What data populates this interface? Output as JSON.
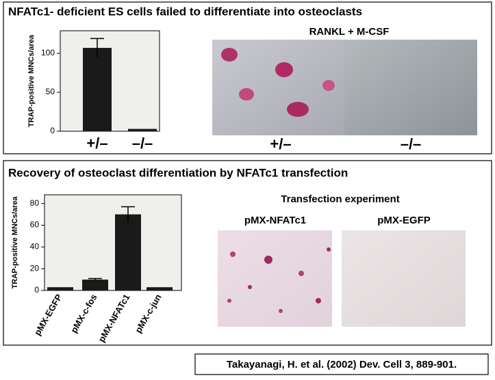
{
  "chart_data": [
    {
      "type": "bar",
      "title": "NFATc1- deficient ES cells failed to differentiate into osteoclasts",
      "y_label": "TRAP-positive MNCs/area",
      "categories": [
        "+/–",
        "–/–"
      ],
      "values": [
        107,
        3
      ],
      "errors": [
        12,
        null
      ],
      "color": "#1a1a1a",
      "ylim": [
        0,
        129
      ],
      "yticks": [
        0,
        50,
        100
      ],
      "image_title": "RANKL + M-CSF",
      "image_labels": [
        "+/–",
        "–/–"
      ]
    },
    {
      "type": "bar",
      "title": "Recovery of osteoclast differentiation by NFATc1 transfection",
      "y_label": "TRAP-positive MNCs/area",
      "categories": [
        "pMX-EGFP",
        "pMX-c-fos",
        "pMX-NFATc1",
        "pMX-c-jun"
      ],
      "values": [
        3,
        10,
        70,
        3
      ],
      "errors": [
        null,
        1,
        7,
        null
      ],
      "color": "#1a1a1a",
      "ylim": [
        0,
        88
      ],
      "yticks": [
        0,
        20,
        40,
        60,
        80
      ],
      "image_title": "Transfection experiment",
      "image_labels": [
        "pMX-NFATc1",
        "pMX-EGFP"
      ]
    }
  ],
  "citation": "Takayanagi, H. et al. (2002) Dev. Cell 3, 889-901."
}
